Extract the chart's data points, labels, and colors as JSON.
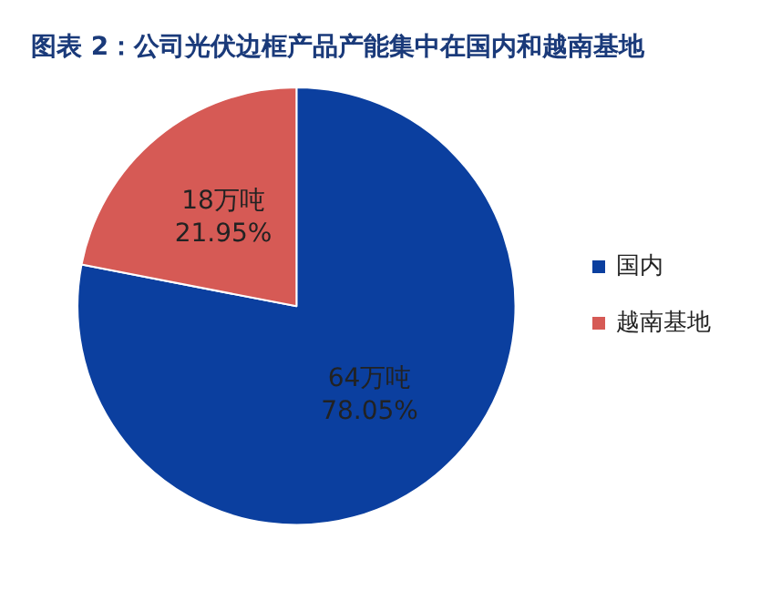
{
  "chart_data": {
    "type": "pie",
    "title": "图表 2：公司光伏边框产品产能集中在国内和越南基地",
    "categories": [
      "国内",
      "越南基地"
    ],
    "values": [
      64,
      18
    ],
    "value_labels": [
      "64万吨\n78.05%",
      "18万吨\n21.95%"
    ],
    "colors": [
      "#0b3f9f",
      "#d65a55"
    ],
    "legend": "right"
  }
}
